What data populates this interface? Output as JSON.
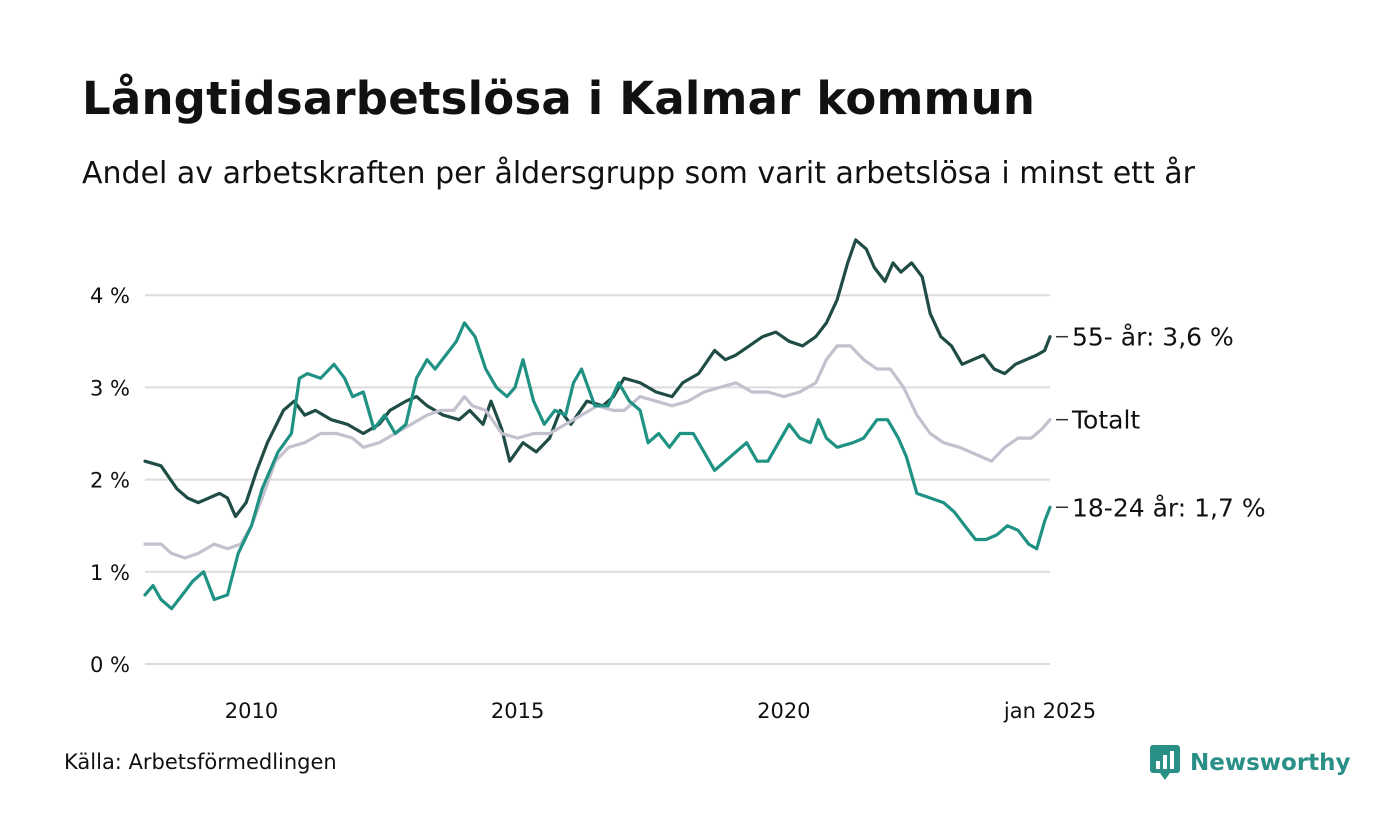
{
  "header": {
    "title": "Långtidsarbetslösa i Kalmar kommun",
    "subtitle": "Andel av arbetskraften per åldersgrupp som varit arbetslösa i minst ett år"
  },
  "footer": {
    "source": "Källa: Arbetsförmedlingen",
    "brand": "Newsworthy",
    "brand_color": "#2a8f86"
  },
  "chart_data": {
    "type": "line",
    "title": "Långtidsarbetslösa i Kalmar kommun",
    "subtitle": "Andel av arbetskraften per åldersgrupp som varit arbetslösa i minst ett år",
    "xlabel": "",
    "ylabel": "",
    "x_range": [
      2008.0,
      2025.0
    ],
    "ylim": [
      0,
      4.7
    ],
    "y_ticks": [
      0,
      1,
      2,
      3,
      4
    ],
    "y_tick_labels": [
      "0 %",
      "1 %",
      "2 %",
      "3 %",
      "4 %"
    ],
    "x_ticks": [
      2010,
      2015,
      2020,
      2025
    ],
    "x_tick_labels": [
      "2010",
      "2015",
      "2020",
      "jan 2025"
    ],
    "grid": true,
    "legend": "end-of-line labels",
    "series": [
      {
        "name": "55- år",
        "end_label": "55- år: 3,6 %",
        "color": "#1f4d45",
        "points": [
          [
            2008.0,
            2.2
          ],
          [
            2008.3,
            2.15
          ],
          [
            2008.6,
            1.9
          ],
          [
            2008.8,
            1.8
          ],
          [
            2009.0,
            1.75
          ],
          [
            2009.2,
            1.8
          ],
          [
            2009.4,
            1.85
          ],
          [
            2009.55,
            1.8
          ],
          [
            2009.7,
            1.6
          ],
          [
            2009.9,
            1.75
          ],
          [
            2010.1,
            2.1
          ],
          [
            2010.3,
            2.4
          ],
          [
            2010.6,
            2.75
          ],
          [
            2010.8,
            2.85
          ],
          [
            2011.0,
            2.7
          ],
          [
            2011.2,
            2.75
          ],
          [
            2011.5,
            2.65
          ],
          [
            2011.8,
            2.6
          ],
          [
            2012.1,
            2.5
          ],
          [
            2012.4,
            2.6
          ],
          [
            2012.6,
            2.75
          ],
          [
            2012.9,
            2.85
          ],
          [
            2013.1,
            2.9
          ],
          [
            2013.3,
            2.8
          ],
          [
            2013.6,
            2.7
          ],
          [
            2013.9,
            2.65
          ],
          [
            2014.1,
            2.75
          ],
          [
            2014.35,
            2.6
          ],
          [
            2014.5,
            2.85
          ],
          [
            2014.7,
            2.55
          ],
          [
            2014.85,
            2.2
          ],
          [
            2015.1,
            2.4
          ],
          [
            2015.35,
            2.3
          ],
          [
            2015.6,
            2.45
          ],
          [
            2015.8,
            2.75
          ],
          [
            2016.0,
            2.6
          ],
          [
            2016.3,
            2.85
          ],
          [
            2016.6,
            2.8
          ],
          [
            2016.8,
            2.9
          ],
          [
            2017.0,
            3.1
          ],
          [
            2017.3,
            3.05
          ],
          [
            2017.6,
            2.95
          ],
          [
            2017.9,
            2.9
          ],
          [
            2018.1,
            3.05
          ],
          [
            2018.4,
            3.15
          ],
          [
            2018.7,
            3.4
          ],
          [
            2018.9,
            3.3
          ],
          [
            2019.1,
            3.35
          ],
          [
            2019.35,
            3.45
          ],
          [
            2019.6,
            3.55
          ],
          [
            2019.85,
            3.6
          ],
          [
            2020.1,
            3.5
          ],
          [
            2020.35,
            3.45
          ],
          [
            2020.6,
            3.55
          ],
          [
            2020.8,
            3.7
          ],
          [
            2021.0,
            3.95
          ],
          [
            2021.2,
            4.35
          ],
          [
            2021.35,
            4.6
          ],
          [
            2021.55,
            4.5
          ],
          [
            2021.7,
            4.3
          ],
          [
            2021.9,
            4.15
          ],
          [
            2022.05,
            4.35
          ],
          [
            2022.2,
            4.25
          ],
          [
            2022.4,
            4.35
          ],
          [
            2022.6,
            4.2
          ],
          [
            2022.75,
            3.8
          ],
          [
            2022.95,
            3.55
          ],
          [
            2023.15,
            3.45
          ],
          [
            2023.35,
            3.25
          ],
          [
            2023.55,
            3.3
          ],
          [
            2023.75,
            3.35
          ],
          [
            2023.95,
            3.2
          ],
          [
            2024.15,
            3.15
          ],
          [
            2024.35,
            3.25
          ],
          [
            2024.55,
            3.3
          ],
          [
            2024.75,
            3.35
          ],
          [
            2024.9,
            3.4
          ],
          [
            2025.0,
            3.55
          ]
        ]
      },
      {
        "name": "Totalt",
        "end_label": "Totalt",
        "color": "#c4c1cf",
        "points": [
          [
            2008.0,
            1.3
          ],
          [
            2008.3,
            1.3
          ],
          [
            2008.5,
            1.2
          ],
          [
            2008.75,
            1.15
          ],
          [
            2009.0,
            1.2
          ],
          [
            2009.3,
            1.3
          ],
          [
            2009.55,
            1.25
          ],
          [
            2009.8,
            1.3
          ],
          [
            2010.0,
            1.5
          ],
          [
            2010.2,
            1.8
          ],
          [
            2010.45,
            2.2
          ],
          [
            2010.7,
            2.35
          ],
          [
            2011.0,
            2.4
          ],
          [
            2011.3,
            2.5
          ],
          [
            2011.6,
            2.5
          ],
          [
            2011.9,
            2.45
          ],
          [
            2012.1,
            2.35
          ],
          [
            2012.4,
            2.4
          ],
          [
            2012.7,
            2.5
          ],
          [
            2013.0,
            2.6
          ],
          [
            2013.3,
            2.7
          ],
          [
            2013.55,
            2.75
          ],
          [
            2013.8,
            2.75
          ],
          [
            2014.0,
            2.9
          ],
          [
            2014.15,
            2.8
          ],
          [
            2014.4,
            2.75
          ],
          [
            2014.7,
            2.5
          ],
          [
            2015.0,
            2.45
          ],
          [
            2015.3,
            2.5
          ],
          [
            2015.6,
            2.5
          ],
          [
            2015.9,
            2.6
          ],
          [
            2016.2,
            2.7
          ],
          [
            2016.5,
            2.8
          ],
          [
            2016.8,
            2.75
          ],
          [
            2017.0,
            2.75
          ],
          [
            2017.3,
            2.9
          ],
          [
            2017.6,
            2.85
          ],
          [
            2017.9,
            2.8
          ],
          [
            2018.2,
            2.85
          ],
          [
            2018.5,
            2.95
          ],
          [
            2018.8,
            3.0
          ],
          [
            2019.1,
            3.05
          ],
          [
            2019.4,
            2.95
          ],
          [
            2019.7,
            2.95
          ],
          [
            2020.0,
            2.9
          ],
          [
            2020.3,
            2.95
          ],
          [
            2020.6,
            3.05
          ],
          [
            2020.8,
            3.3
          ],
          [
            2021.0,
            3.45
          ],
          [
            2021.25,
            3.45
          ],
          [
            2021.5,
            3.3
          ],
          [
            2021.75,
            3.2
          ],
          [
            2022.0,
            3.2
          ],
          [
            2022.25,
            3.0
          ],
          [
            2022.5,
            2.7
          ],
          [
            2022.75,
            2.5
          ],
          [
            2023.0,
            2.4
          ],
          [
            2023.3,
            2.35
          ],
          [
            2023.5,
            2.3
          ],
          [
            2023.7,
            2.25
          ],
          [
            2023.9,
            2.2
          ],
          [
            2024.15,
            2.35
          ],
          [
            2024.4,
            2.45
          ],
          [
            2024.65,
            2.45
          ],
          [
            2024.85,
            2.55
          ],
          [
            2025.0,
            2.65
          ]
        ]
      },
      {
        "name": "18-24 år",
        "end_label": "18-24 år: 1,7 %",
        "color": "#1f9284",
        "points": [
          [
            2008.0,
            0.75
          ],
          [
            2008.15,
            0.85
          ],
          [
            2008.3,
            0.7
          ],
          [
            2008.5,
            0.6
          ],
          [
            2008.7,
            0.75
          ],
          [
            2008.9,
            0.9
          ],
          [
            2009.1,
            1.0
          ],
          [
            2009.3,
            0.7
          ],
          [
            2009.55,
            0.75
          ],
          [
            2009.75,
            1.2
          ],
          [
            2010.0,
            1.5
          ],
          [
            2010.2,
            1.9
          ],
          [
            2010.5,
            2.3
          ],
          [
            2010.75,
            2.5
          ],
          [
            2010.9,
            3.1
          ],
          [
            2011.05,
            3.15
          ],
          [
            2011.3,
            3.1
          ],
          [
            2011.55,
            3.25
          ],
          [
            2011.75,
            3.1
          ],
          [
            2011.9,
            2.9
          ],
          [
            2012.1,
            2.95
          ],
          [
            2012.3,
            2.55
          ],
          [
            2012.5,
            2.7
          ],
          [
            2012.7,
            2.5
          ],
          [
            2012.9,
            2.6
          ],
          [
            2013.1,
            3.1
          ],
          [
            2013.3,
            3.3
          ],
          [
            2013.45,
            3.2
          ],
          [
            2013.65,
            3.35
          ],
          [
            2013.85,
            3.5
          ],
          [
            2014.0,
            3.7
          ],
          [
            2014.2,
            3.55
          ],
          [
            2014.4,
            3.2
          ],
          [
            2014.6,
            3.0
          ],
          [
            2014.8,
            2.9
          ],
          [
            2014.95,
            3.0
          ],
          [
            2015.1,
            3.3
          ],
          [
            2015.3,
            2.85
          ],
          [
            2015.5,
            2.6
          ],
          [
            2015.7,
            2.75
          ],
          [
            2015.9,
            2.7
          ],
          [
            2016.05,
            3.05
          ],
          [
            2016.2,
            3.2
          ],
          [
            2016.45,
            2.8
          ],
          [
            2016.7,
            2.8
          ],
          [
            2016.9,
            3.05
          ],
          [
            2017.1,
            2.85
          ],
          [
            2017.3,
            2.75
          ],
          [
            2017.45,
            2.4
          ],
          [
            2017.65,
            2.5
          ],
          [
            2017.85,
            2.35
          ],
          [
            2018.05,
            2.5
          ],
          [
            2018.3,
            2.5
          ],
          [
            2018.5,
            2.3
          ],
          [
            2018.7,
            2.1
          ],
          [
            2018.9,
            2.2
          ],
          [
            2019.1,
            2.3
          ],
          [
            2019.3,
            2.4
          ],
          [
            2019.5,
            2.2
          ],
          [
            2019.7,
            2.2
          ],
          [
            2019.9,
            2.4
          ],
          [
            2020.1,
            2.6
          ],
          [
            2020.3,
            2.45
          ],
          [
            2020.5,
            2.4
          ],
          [
            2020.65,
            2.65
          ],
          [
            2020.8,
            2.45
          ],
          [
            2021.0,
            2.35
          ],
          [
            2021.3,
            2.4
          ],
          [
            2021.5,
            2.45
          ],
          [
            2021.75,
            2.65
          ],
          [
            2021.95,
            2.65
          ],
          [
            2022.15,
            2.45
          ],
          [
            2022.3,
            2.25
          ],
          [
            2022.5,
            1.85
          ],
          [
            2022.75,
            1.8
          ],
          [
            2023.0,
            1.75
          ],
          [
            2023.2,
            1.65
          ],
          [
            2023.4,
            1.5
          ],
          [
            2023.6,
            1.35
          ],
          [
            2023.8,
            1.35
          ],
          [
            2024.0,
            1.4
          ],
          [
            2024.2,
            1.5
          ],
          [
            2024.4,
            1.45
          ],
          [
            2024.6,
            1.3
          ],
          [
            2024.75,
            1.25
          ],
          [
            2024.9,
            1.55
          ],
          [
            2025.0,
            1.7
          ]
        ]
      }
    ]
  }
}
